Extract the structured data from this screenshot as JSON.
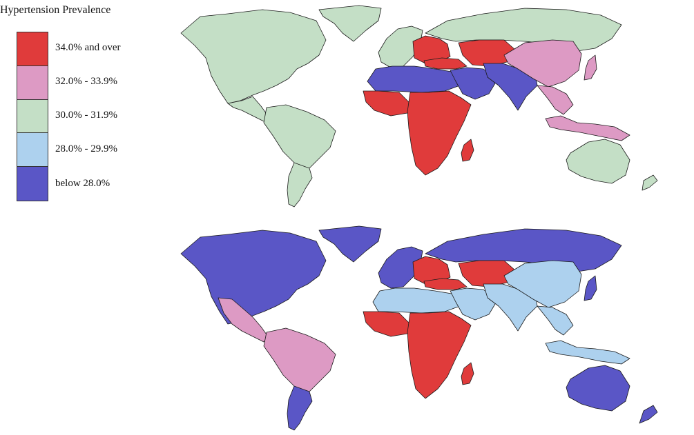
{
  "legend": {
    "title": "Hypertension Prevalence",
    "items": [
      {
        "label": "34.0% and over",
        "color": "#e03b3b"
      },
      {
        "label": "32.0% - 33.9%",
        "color": "#dd9ac4"
      },
      {
        "label": "30.0% - 31.9%",
        "color": "#c4dfc6"
      },
      {
        "label": "28.0% - 29.9%",
        "color": "#add1ee"
      },
      {
        "label": "below 28.0%",
        "color": "#5a56c6"
      }
    ]
  },
  "maps": {
    "top": {
      "north_america": 2,
      "greenland": 2,
      "central_america": 2,
      "south_america": 2,
      "southern_cone": 2,
      "western_europe": 2,
      "eastern_europe": 0,
      "russia": 2,
      "turkey_caucasus": 0,
      "central_asia": 0,
      "north_africa": 4,
      "west_africa": 0,
      "sub_saharan_africa": 0,
      "madagascar": 0,
      "middle_east": 4,
      "south_asia": 4,
      "china": 1,
      "southeast_asia": 1,
      "japan": 1,
      "indonesia": 1,
      "australia": 2,
      "new_zealand": 2
    },
    "bottom": {
      "north_america": 4,
      "greenland": 4,
      "central_america": 1,
      "south_america": 1,
      "southern_cone": 4,
      "western_europe": 4,
      "eastern_europe": 0,
      "russia": 4,
      "turkey_caucasus": 0,
      "central_asia": 0,
      "north_africa": 3,
      "west_africa": 0,
      "sub_saharan_africa": 0,
      "madagascar": 0,
      "middle_east": 3,
      "south_asia": 3,
      "china": 3,
      "southeast_asia": 3,
      "japan": 4,
      "indonesia": 3,
      "australia": 4,
      "new_zealand": 4
    }
  }
}
